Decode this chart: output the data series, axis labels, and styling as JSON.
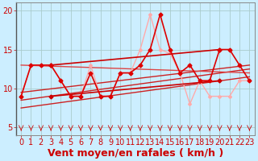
{
  "xlabel": "Vent moyen/en rafales ( km/h )",
  "bg_color": "#cceeff",
  "grid_color": "#aacccc",
  "ylim": [
    4,
    21
  ],
  "yticks": [
    5,
    10,
    15,
    20
  ],
  "xlim": [
    -0.5,
    23.5
  ],
  "xticks": [
    0,
    1,
    2,
    3,
    4,
    5,
    6,
    7,
    8,
    9,
    10,
    11,
    12,
    13,
    14,
    15,
    16,
    17,
    18,
    19,
    20,
    21,
    22,
    23
  ],
  "series": [
    {
      "x": [
        0,
        1,
        2,
        3,
        4,
        5,
        6,
        7,
        8,
        9,
        10,
        11,
        12,
        13,
        14,
        15,
        16,
        17,
        18,
        19,
        20,
        21,
        22,
        23
      ],
      "y": [
        9,
        13,
        13,
        13,
        11,
        9,
        9,
        13,
        9,
        9,
        12,
        12,
        15,
        19.5,
        15,
        14.5,
        12,
        8,
        11,
        9,
        9,
        9,
        11,
        11
      ],
      "color": "#ffaaaa",
      "lw": 1.0,
      "marker": "D",
      "ms": 2.0,
      "zorder": 3
    },
    {
      "x": [
        0,
        1,
        2,
        3,
        4,
        5,
        6,
        7,
        8,
        9,
        10,
        11,
        12,
        13,
        14,
        15,
        16,
        17,
        18,
        19,
        20,
        21,
        22,
        23
      ],
      "y": [
        9,
        13,
        13,
        13,
        11,
        9,
        9,
        12,
        9,
        9,
        12,
        12,
        13,
        15,
        19.5,
        15,
        12,
        13,
        11,
        11,
        15,
        15,
        13,
        11
      ],
      "color": "#dd0000",
      "lw": 1.2,
      "marker": "D",
      "ms": 2.5,
      "zorder": 4
    },
    {
      "x": [
        0,
        23
      ],
      "y": [
        7.5,
        11.5
      ],
      "color": "#cc2222",
      "lw": 1.0,
      "marker": null,
      "ms": 0,
      "zorder": 2
    },
    {
      "x": [
        0,
        23
      ],
      "y": [
        8.5,
        12.5
      ],
      "color": "#cc2222",
      "lw": 1.0,
      "marker": null,
      "ms": 0,
      "zorder": 2
    },
    {
      "x": [
        0,
        23
      ],
      "y": [
        9.5,
        13.0
      ],
      "color": "#cc2222",
      "lw": 1.0,
      "marker": null,
      "ms": 0,
      "zorder": 2
    },
    {
      "x": [
        0,
        23
      ],
      "y": [
        13.0,
        12.0
      ],
      "color": "#dd4444",
      "lw": 1.0,
      "marker": null,
      "ms": 0,
      "zorder": 2
    },
    {
      "x": [
        3,
        20
      ],
      "y": [
        13.0,
        15.0
      ],
      "color": "#cc0000",
      "lw": 1.2,
      "marker": "D",
      "ms": 2.5,
      "zorder": 3
    },
    {
      "x": [
        3,
        20
      ],
      "y": [
        9.0,
        11.0
      ],
      "color": "#cc0000",
      "lw": 1.2,
      "marker": "D",
      "ms": 2.5,
      "zorder": 3
    }
  ],
  "xlabel_color": "#cc0000",
  "xlabel_fontsize": 9,
  "tick_label_color": "#cc0000",
  "tick_label_fontsize": 7
}
